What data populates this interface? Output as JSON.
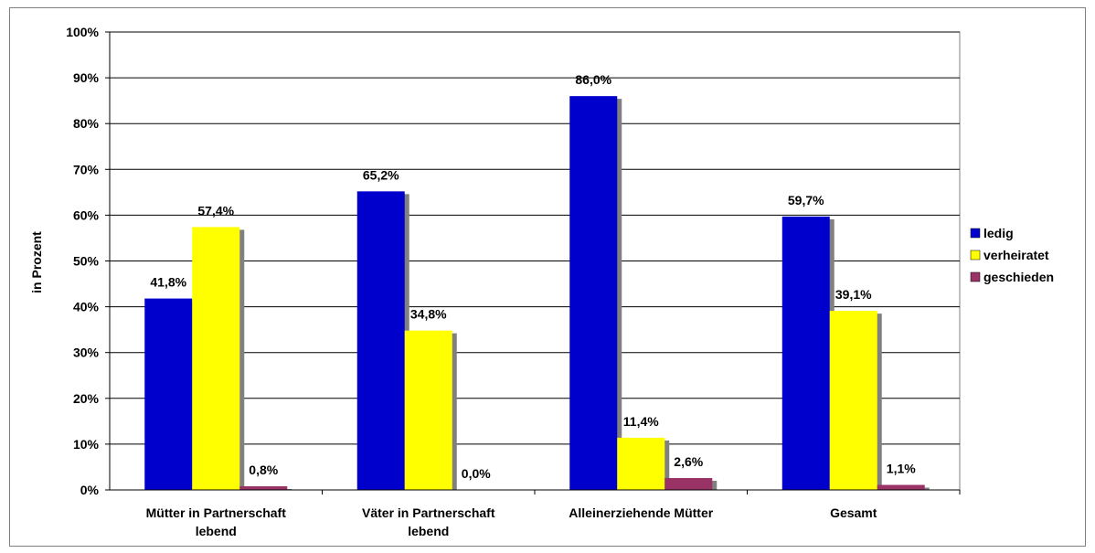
{
  "chart_data": {
    "type": "bar",
    "title": "",
    "xlabel": "",
    "ylabel": "in Prozent",
    "ylim": [
      0,
      100
    ],
    "yticks": [
      "0%",
      "10%",
      "20%",
      "30%",
      "40%",
      "50%",
      "60%",
      "70%",
      "80%",
      "90%",
      "100%"
    ],
    "categories": [
      [
        "Mütter in Partnerschaft",
        "lebend"
      ],
      [
        "Väter in Partnerschaft",
        "lebend"
      ],
      [
        "Alleinerziehende Mütter"
      ],
      [
        "Gesamt"
      ]
    ],
    "series": [
      {
        "name": "ledig",
        "color": "#0000CC",
        "values": [
          41.8,
          65.2,
          86.0,
          59.7
        ],
        "labels": [
          "41,8%",
          "65,2%",
          "86,0%",
          "59,7%"
        ]
      },
      {
        "name": "verheiratet",
        "color": "#FFFF00",
        "values": [
          57.4,
          34.8,
          11.4,
          39.1
        ],
        "labels": [
          "57,4%",
          "34,8%",
          "11,4%",
          "39,1%"
        ]
      },
      {
        "name": "geschieden",
        "color": "#993366",
        "values": [
          0.8,
          0.0,
          2.6,
          1.1
        ],
        "labels": [
          "0,8%",
          "0,0%",
          "2,6%",
          "1,1%"
        ]
      }
    ],
    "grid": true,
    "legend_position": "right"
  }
}
